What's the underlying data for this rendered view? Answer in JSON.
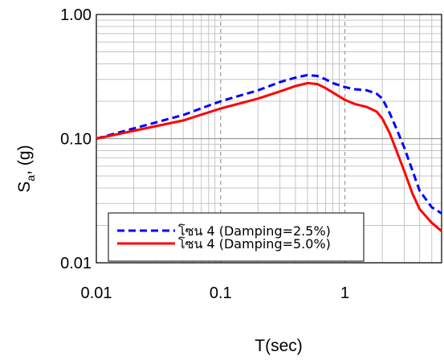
{
  "chart_data": {
    "type": "line",
    "xlabel": "T(sec)",
    "ylabel_main": "S",
    "ylabel_sub": "a",
    "ylabel_rest": ", (g)",
    "xscale": "log",
    "yscale": "log",
    "xlim": [
      0.01,
      6
    ],
    "ylim": [
      0.01,
      1.0
    ],
    "x_ticks": [
      0.01,
      0.1,
      1
    ],
    "x_tick_labels": [
      "0.01",
      "0.1",
      "1"
    ],
    "y_ticks": [
      0.01,
      0.1,
      1.0
    ],
    "y_tick_labels": [
      "0.01",
      "0.10",
      "1.00"
    ],
    "grid": true,
    "legend_position": "bottom-left",
    "series": [
      {
        "name": "โซน 4 (Damping=2.5%)",
        "color": "#0000ff",
        "style": "dashed",
        "x": [
          0.01,
          0.05,
          0.1,
          0.2,
          0.3,
          0.4,
          0.5,
          0.6,
          0.7,
          0.8,
          1.0,
          1.2,
          1.5,
          1.8,
          2.0,
          2.3,
          2.6,
          3.0,
          3.5,
          4.0,
          5.0,
          6.0
        ],
        "y": [
          0.1,
          0.155,
          0.2,
          0.245,
          0.285,
          0.31,
          0.325,
          0.32,
          0.3,
          0.28,
          0.26,
          0.25,
          0.245,
          0.23,
          0.21,
          0.16,
          0.12,
          0.085,
          0.055,
          0.038,
          0.028,
          0.025
        ]
      },
      {
        "name": "โซน 4 (Damping=5.0%)",
        "color": "#ff0000",
        "style": "solid",
        "x": [
          0.01,
          0.05,
          0.1,
          0.2,
          0.3,
          0.4,
          0.5,
          0.6,
          0.7,
          0.8,
          1.0,
          1.2,
          1.5,
          1.8,
          2.0,
          2.3,
          2.6,
          3.0,
          3.5,
          4.0,
          5.0,
          6.0
        ],
        "y": [
          0.1,
          0.14,
          0.175,
          0.21,
          0.24,
          0.265,
          0.28,
          0.275,
          0.255,
          0.235,
          0.205,
          0.19,
          0.18,
          0.165,
          0.145,
          0.11,
          0.08,
          0.055,
          0.036,
          0.027,
          0.021,
          0.018
        ]
      }
    ]
  }
}
